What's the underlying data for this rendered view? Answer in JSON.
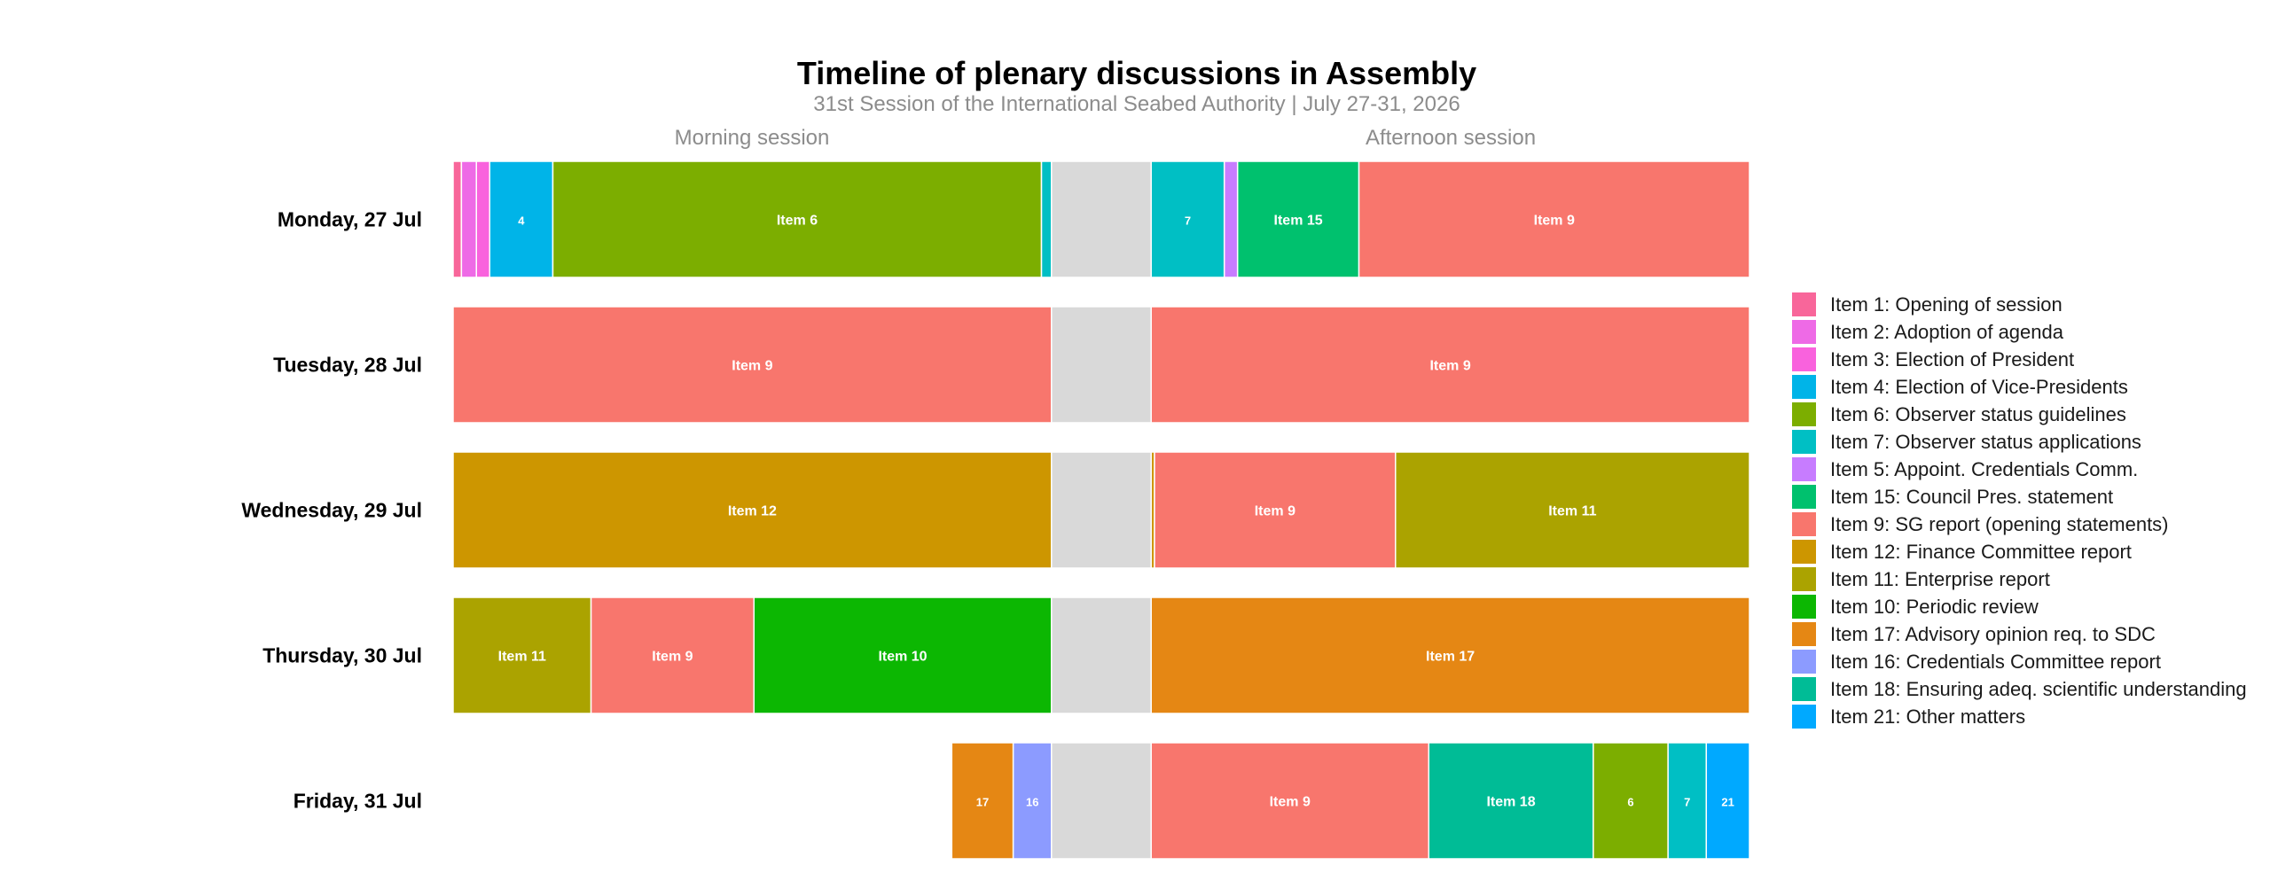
{
  "chart_data": {
    "type": "bar",
    "orientation": "horizontal-stacked-timeline",
    "title": "Timeline of plenary discussions in Assembly",
    "subtitle": "31st Session of the International Seabed Authority | July 27-31, 2026",
    "session_labels": {
      "morning": "Morning session",
      "afternoon": "Afternoon session"
    },
    "axis": {
      "unit": "minutes",
      "morning_range": [
        0,
        180
      ],
      "break_range": [
        180,
        210
      ],
      "afternoon_range": [
        210,
        390
      ],
      "grid": false
    },
    "break_color": "#d9d9d9",
    "days": [
      {
        "label": "Monday, 27 Jul",
        "segments": [
          {
            "item": "1",
            "start": 0,
            "end": 2.5,
            "label": ""
          },
          {
            "item": "2",
            "start": 2.5,
            "end": 7,
            "label": ""
          },
          {
            "item": "3",
            "start": 7,
            "end": 11,
            "label": ""
          },
          {
            "item": "4",
            "start": 11,
            "end": 30,
            "label": "4"
          },
          {
            "item": "6",
            "start": 30,
            "end": 177,
            "label": "Item 6"
          },
          {
            "item": "7",
            "start": 177,
            "end": 180,
            "label": ""
          },
          {
            "item": "7",
            "start": 210,
            "end": 232,
            "label": "7"
          },
          {
            "item": "5",
            "start": 232,
            "end": 236,
            "label": ""
          },
          {
            "item": "15",
            "start": 236,
            "end": 272.5,
            "label": "Item 15"
          },
          {
            "item": "9",
            "start": 272.5,
            "end": 390,
            "label": "Item 9"
          }
        ]
      },
      {
        "label": "Tuesday, 28 Jul",
        "segments": [
          {
            "item": "9",
            "start": 0,
            "end": 180,
            "label": "Item 9"
          },
          {
            "item": "9",
            "start": 210,
            "end": 390,
            "label": "Item 9"
          }
        ]
      },
      {
        "label": "Wednesday, 29 Jul",
        "segments": [
          {
            "item": "12",
            "start": 0,
            "end": 180,
            "label": "Item 12"
          },
          {
            "item": "12",
            "start": 210,
            "end": 211,
            "label": ""
          },
          {
            "item": "9",
            "start": 211,
            "end": 283.5,
            "label": "Item 9"
          },
          {
            "item": "11",
            "start": 283.5,
            "end": 390,
            "label": "Item 11"
          }
        ]
      },
      {
        "label": "Thursday, 30 Jul",
        "segments": [
          {
            "item": "11",
            "start": 0,
            "end": 41.5,
            "label": "Item 11"
          },
          {
            "item": "9",
            "start": 41.5,
            "end": 90.5,
            "label": "Item 9"
          },
          {
            "item": "10",
            "start": 90.5,
            "end": 180,
            "label": "Item 10"
          },
          {
            "item": "17",
            "start": 210,
            "end": 390,
            "label": "Item 17"
          }
        ]
      },
      {
        "label": "Friday, 31 Jul",
        "segments": [
          {
            "item": "17",
            "start": 150,
            "end": 168.5,
            "label": "17"
          },
          {
            "item": "16",
            "start": 168.5,
            "end": 180,
            "label": "16"
          },
          {
            "item": "9",
            "start": 210,
            "end": 293.5,
            "label": "Item 9"
          },
          {
            "item": "18",
            "start": 293.5,
            "end": 343,
            "label": "Item 18"
          },
          {
            "item": "6",
            "start": 343,
            "end": 365.5,
            "label": "6"
          },
          {
            "item": "7",
            "start": 365.5,
            "end": 377,
            "label": "7"
          },
          {
            "item": "21",
            "start": 377,
            "end": 390,
            "label": "21"
          }
        ]
      }
    ],
    "legend_position": "right",
    "legend": [
      {
        "item": "1",
        "label": "Item 1: Opening of session",
        "color": "#f8669a"
      },
      {
        "item": "2",
        "label": "Item 2: Adoption of agenda",
        "color": "#ee6ae6"
      },
      {
        "item": "3",
        "label": "Item 3: Election of President",
        "color": "#f962dd"
      },
      {
        "item": "4",
        "label": "Item 4: Election of Vice-Presidents",
        "color": "#00b4e8"
      },
      {
        "item": "6",
        "label": "Item 6: Observer status guidelines",
        "color": "#7cae00"
      },
      {
        "item": "7",
        "label": "Item 7: Observer status applications",
        "color": "#00bfc4"
      },
      {
        "item": "5",
        "label": "Item 5: Appoint. Credentials Comm.",
        "color": "#c77cff"
      },
      {
        "item": "15",
        "label": "Item 15: Council Pres. statement",
        "color": "#00c16e"
      },
      {
        "item": "9",
        "label": "Item 9: SG report (opening statements)",
        "color": "#f8766d"
      },
      {
        "item": "12",
        "label": "Item 12: Finance Committee report",
        "color": "#cd9600"
      },
      {
        "item": "11",
        "label": "Item 11: Enterprise report",
        "color": "#aba300"
      },
      {
        "item": "10",
        "label": "Item 10: Periodic review",
        "color": "#0cb702"
      },
      {
        "item": "17",
        "label": "Item 17: Advisory opinion req. to SDC",
        "color": "#e58714"
      },
      {
        "item": "16",
        "label": "Item 16: Credentials Committee report",
        "color": "#8c9bff"
      },
      {
        "item": "18",
        "label": "Item 18: Ensuring adeq. scientific understanding",
        "color": "#00bc96"
      },
      {
        "item": "21",
        "label": "Item 21: Other matters",
        "color": "#00a9ff"
      }
    ]
  }
}
